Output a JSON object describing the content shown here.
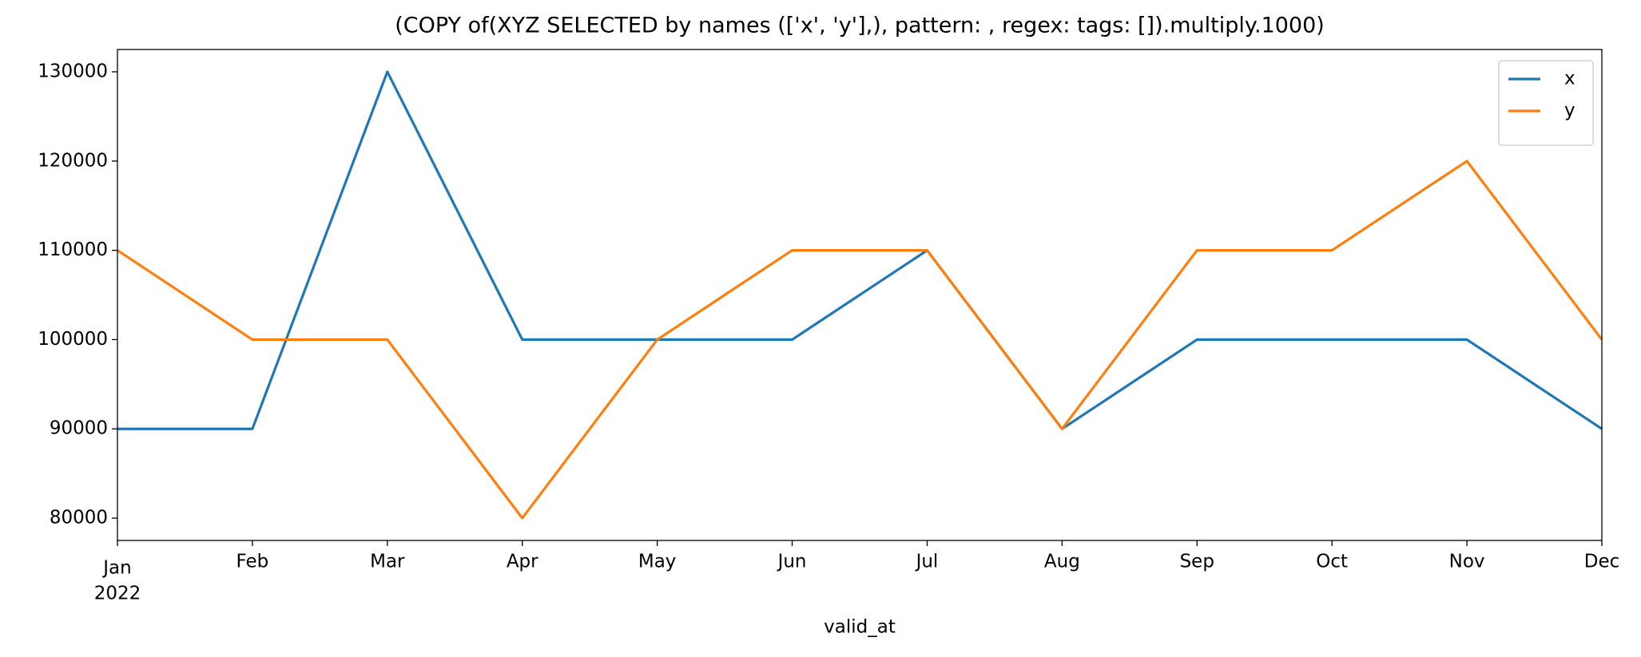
{
  "chart_data": {
    "type": "line",
    "title": "(COPY of(XYZ SELECTED by names (['x', 'y'],), pattern: , regex:  tags: []).multiply.1000)",
    "x_label": "valid_at",
    "categories": [
      "Jan",
      "Feb",
      "Mar",
      "Apr",
      "May",
      "Jun",
      "Jul",
      "Aug",
      "Sep",
      "Oct",
      "Nov",
      "Dec"
    ],
    "year_label": "2022",
    "series": [
      {
        "name": "x",
        "color": "#1f77b4",
        "values": [
          90000,
          90000,
          130000,
          100000,
          100000,
          100000,
          110000,
          90000,
          100000,
          100000,
          100000,
          90000
        ]
      },
      {
        "name": "y",
        "color": "#ff7f0e",
        "values": [
          110000,
          100000,
          100000,
          80000,
          100000,
          110000,
          110000,
          90000,
          110000,
          110000,
          120000,
          100000
        ]
      }
    ],
    "ylim": [
      77500,
      132500
    ],
    "yticks": [
      80000,
      90000,
      100000,
      110000,
      120000,
      130000
    ],
    "grid": false,
    "legend": "upper right"
  }
}
